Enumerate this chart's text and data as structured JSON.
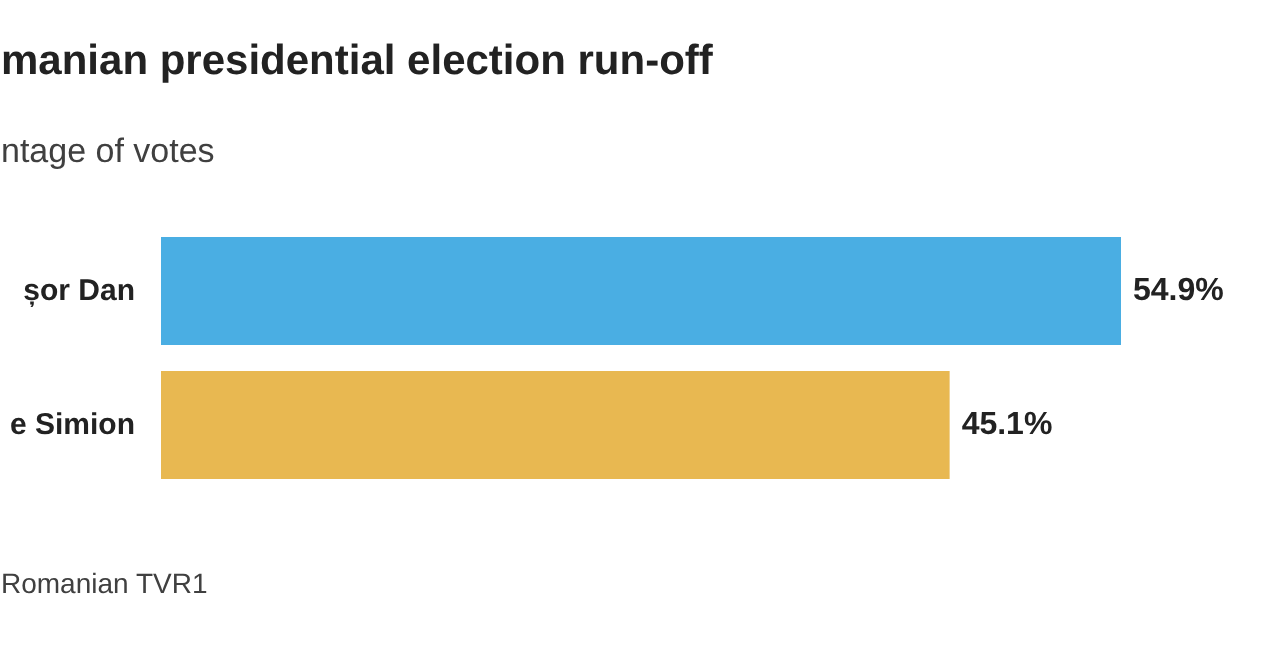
{
  "chart_data": {
    "type": "bar",
    "orientation": "horizontal",
    "title": "manian presidential election run-off",
    "subtitle": "ntage of votes",
    "categories": [
      "șor Dan",
      "e Simion"
    ],
    "values": [
      54.9,
      45.1
    ],
    "colors": [
      "#4aaee3",
      "#e8b851"
    ],
    "value_labels": [
      "54.9%",
      "45.1%"
    ],
    "annotations": [
      "Romanian TVR1"
    ],
    "grid": false
  }
}
